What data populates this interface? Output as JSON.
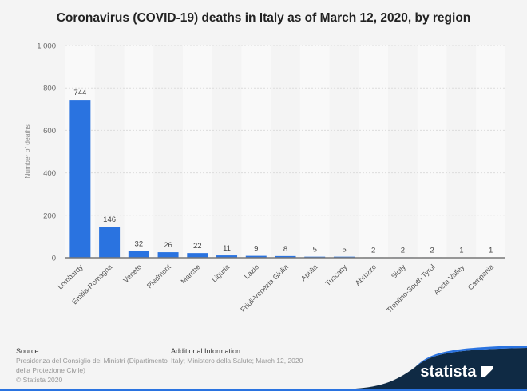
{
  "chart_data": {
    "type": "bar",
    "title": "Coronavirus (COVID-19) deaths in Italy as of March 12, 2020, by region",
    "ylabel": "Number of deaths",
    "xlabel": "",
    "ylim": [
      0,
      1000
    ],
    "yticks": [
      0,
      200,
      400,
      600,
      800,
      1000
    ],
    "ytick_labels": [
      "0",
      "200",
      "400",
      "600",
      "800",
      "1 000"
    ],
    "grid": true,
    "categories": [
      "Lombardy",
      "Emilia-Romagna",
      "Veneto",
      "Piedmont",
      "Marche",
      "Liguria",
      "Lazio",
      "Friuli-Venezia Giulia",
      "Apulia",
      "Tuscany",
      "Abruzzo",
      "Sicily",
      "Trentino-South Tyrol",
      "Aosta Valley",
      "Campania"
    ],
    "values": [
      744,
      146,
      32,
      26,
      22,
      11,
      9,
      8,
      5,
      5,
      2,
      2,
      2,
      1,
      1
    ],
    "bar_color": "#2a73e0"
  },
  "footer": {
    "source_heading": "Source",
    "source_line1": "Presidenza del Consiglio dei Ministri (Dipartimento",
    "source_line2": "della Protezione Civile)",
    "copyright": "© Statista 2020",
    "additional_heading": "Additional Information:",
    "additional_text": "Italy; Ministero della Salute; March 12, 2020"
  },
  "brand": {
    "logo": "statista",
    "colors": {
      "navy": "#0f2a44",
      "blue": "#2a73e0"
    }
  }
}
